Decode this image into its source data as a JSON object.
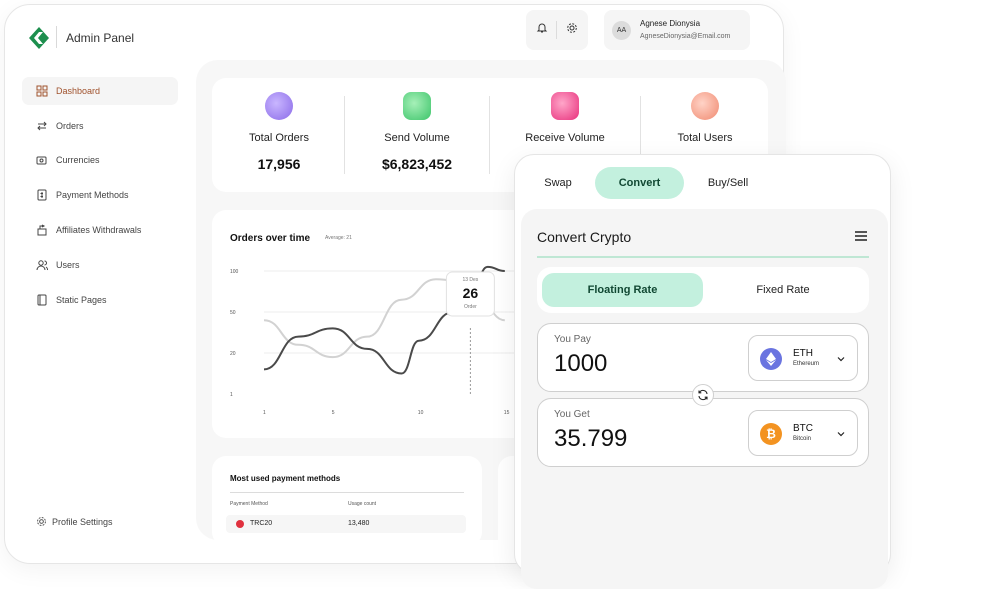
{
  "header": {
    "app_title": "Admin Panel",
    "user": {
      "initials": "AA",
      "name": "Agnese Dionysia",
      "email": "AgneseDionysia@Email.com"
    }
  },
  "sidebar": {
    "items": [
      {
        "label": "Dashboard",
        "icon": "dashboard-icon",
        "active": true
      },
      {
        "label": "Orders",
        "icon": "arrows-icon"
      },
      {
        "label": "Currencies",
        "icon": "currency-icon"
      },
      {
        "label": "Payment Methods",
        "icon": "payment-icon"
      },
      {
        "label": "Affiliates Withdrawals",
        "icon": "withdraw-icon"
      },
      {
        "label": "Users",
        "icon": "users-icon"
      },
      {
        "label": "Static Pages",
        "icon": "pages-icon"
      }
    ],
    "profile_settings": "Profile Settings"
  },
  "stats": [
    {
      "label": "Total Orders",
      "value": "17,956",
      "color": "#9b7cf0"
    },
    {
      "label": "Send Volume",
      "value": "$6,823,452",
      "color": "#4ccf7c"
    },
    {
      "label": "Receive Volume",
      "value": "",
      "color": "#ef3f8b"
    },
    {
      "label": "Total Users",
      "value": "",
      "color": "#f29b88"
    }
  ],
  "chart": {
    "title": "Orders over time",
    "subtitle": "Average: 21",
    "tooltip": {
      "date": "13 Des",
      "value": "26",
      "label": "Order"
    }
  },
  "chart_data": {
    "type": "line",
    "title": "Orders over time",
    "y_ticks": [
      "100",
      "50",
      "20",
      "1"
    ],
    "x_ticks": [
      "1",
      "5",
      "10",
      "15"
    ],
    "series": [
      {
        "x": [
          1,
          3,
          5,
          7,
          9,
          10,
          12,
          13,
          14,
          15
        ],
        "y": [
          0.6,
          1.4,
          1.6,
          1.1,
          0.5,
          1.3,
          2.0,
          2.4,
          3.1,
          3.0
        ]
      },
      {
        "x": [
          1,
          3,
          5,
          7,
          9,
          11,
          13,
          15
        ],
        "y": [
          1.8,
          1.2,
          0.9,
          1.4,
          2.3,
          2.8,
          2.7,
          1.8
        ]
      }
    ],
    "highlight": {
      "x": 13,
      "value": 26
    }
  },
  "payments": {
    "title": "Most used payment methods",
    "col_method": "Payment Method",
    "col_count": "Usage count",
    "rows": [
      {
        "name": "TRC20",
        "count": "13,480",
        "color": "#e0313e"
      }
    ]
  },
  "widget": {
    "tabs": [
      {
        "label": "Swap"
      },
      {
        "label": "Convert",
        "active": true
      },
      {
        "label": "Buy/Sell"
      }
    ],
    "title": "Convert Crypto",
    "rate_floating": "Floating Rate",
    "rate_fixed": "Fixed Rate",
    "pay": {
      "label": "You Pay",
      "amount": "1000",
      "symbol": "ETH",
      "name": "Ethereum",
      "color": "#6a74e0"
    },
    "get": {
      "label": "You Get",
      "amount": "35.799",
      "symbol": "BTC",
      "name": "Bitcoin",
      "color": "#f39321"
    }
  }
}
